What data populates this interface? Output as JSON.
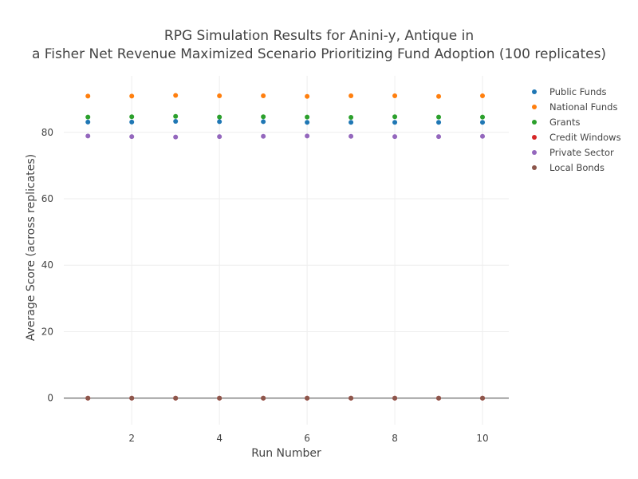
{
  "chart_data": {
    "type": "scatter",
    "title_lines": [
      "RPG Simulation Results for Anini-y, Antique in",
      "a Fisher Net Revenue Maximized Scenario Prioritizing Fund Adoption (100 replicates)"
    ],
    "xlabel": "Run Number",
    "ylabel": "Average Score (across replicates)",
    "xlim": [
      0.45,
      10.6
    ],
    "ylim": [
      -8,
      97
    ],
    "x_ticks": [
      2,
      4,
      6,
      8,
      10
    ],
    "y_ticks": [
      0,
      20,
      40,
      60,
      80
    ],
    "grid": true,
    "legend_position": "top-right",
    "x": [
      1,
      2,
      3,
      4,
      5,
      6,
      7,
      8,
      9,
      10
    ],
    "series": [
      {
        "name": "Public Funds",
        "color": "#1f77b4",
        "values": [
          83.1,
          83.1,
          83.3,
          83.2,
          83.2,
          83.0,
          83.0,
          83.0,
          83.0,
          83.0
        ]
      },
      {
        "name": "National Funds",
        "color": "#ff7f0e",
        "values": [
          90.9,
          90.9,
          91.1,
          91.0,
          91.0,
          90.8,
          91.0,
          91.0,
          90.8,
          91.0
        ]
      },
      {
        "name": "Grants",
        "color": "#2ca02c",
        "values": [
          84.6,
          84.7,
          84.8,
          84.6,
          84.7,
          84.6,
          84.5,
          84.7,
          84.6,
          84.6
        ]
      },
      {
        "name": "Credit Windows",
        "color": "#d62728",
        "values": [
          0,
          0,
          0,
          0,
          0,
          0,
          0,
          0,
          0,
          0
        ]
      },
      {
        "name": "Private Sector",
        "color": "#9467bd",
        "values": [
          78.9,
          78.7,
          78.6,
          78.7,
          78.8,
          78.9,
          78.8,
          78.7,
          78.7,
          78.8
        ]
      },
      {
        "name": "Local Bonds",
        "color": "#8c564b",
        "values": [
          0,
          0,
          0,
          0,
          0,
          0,
          0,
          0,
          0,
          0
        ]
      }
    ]
  }
}
